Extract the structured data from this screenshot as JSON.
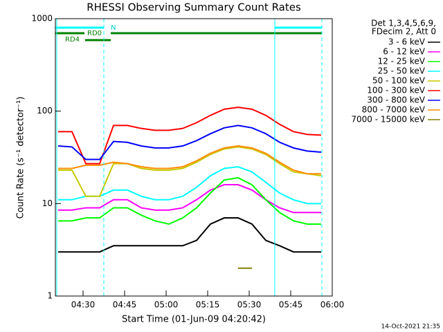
{
  "chart_data": {
    "type": "line",
    "title": "RHESSI Observing Summary Count Rates",
    "xlabel": "Start Time (01-Jun-09 04:20:42)",
    "ylabel": "Count Rate (s⁻¹ detector⁻¹)",
    "legend_header": [
      "Det 1,3,4,5,6,9,",
      "FDecim 2, Att 0"
    ],
    "timestamp": "14-Oct-2021 21:35",
    "annotations": [
      "N",
      "RD0",
      "RD4"
    ],
    "log_y": true,
    "xlim": [
      20,
      120
    ],
    "xticks": [
      {
        "value": 30,
        "label": "04:30"
      },
      {
        "value": 45,
        "label": "04:45"
      },
      {
        "value": 60,
        "label": "05:00"
      },
      {
        "value": 75,
        "label": "05:15"
      },
      {
        "value": 90,
        "label": "05:30"
      },
      {
        "value": 105,
        "label": "05:45"
      },
      {
        "value": 120,
        "label": "06:00"
      }
    ],
    "ylim": [
      1,
      1000
    ],
    "yticks": [
      1,
      10,
      100,
      1000
    ],
    "x": [
      21,
      26,
      31,
      36,
      41,
      46,
      51,
      56,
      61,
      66,
      71,
      76,
      81,
      86,
      91,
      96,
      101,
      106,
      111,
      116
    ],
    "series": [
      {
        "name": "3 - 6 keV",
        "color": "#000000",
        "values": [
          3,
          3,
          3,
          3,
          3.5,
          3.5,
          3.5,
          3.5,
          3.5,
          3.5,
          4,
          6,
          7,
          7,
          6,
          4,
          3.5,
          3,
          3,
          3
        ]
      },
      {
        "name": "6 - 12 keV",
        "color": "#ff00ff",
        "values": [
          8.5,
          8.5,
          9,
          9,
          11,
          11,
          9,
          8.5,
          8.5,
          9,
          11,
          14,
          16,
          16,
          14,
          11,
          9,
          8,
          8,
          8
        ]
      },
      {
        "name": "12 - 25 keV",
        "color": "#00ff00",
        "values": [
          6.5,
          6.5,
          7,
          7,
          9,
          9,
          7.5,
          6.5,
          6,
          7,
          9,
          13,
          18,
          19,
          16,
          11,
          8,
          6.5,
          6,
          6
        ]
      },
      {
        "name": "25 - 50 keV",
        "color": "#00ffff",
        "values": [
          11,
          11,
          12,
          12,
          14,
          14,
          12,
          11,
          11,
          12,
          15,
          20,
          24,
          25,
          22,
          17,
          13,
          11,
          10,
          10
        ]
      },
      {
        "name": "50 - 100 keV",
        "color": "#c8c800",
        "values": [
          23,
          23,
          12,
          12,
          27,
          27,
          24,
          23,
          23,
          24,
          28,
          34,
          39,
          41,
          39,
          34,
          27,
          22,
          21,
          20
        ]
      },
      {
        "name": "100 - 300 keV",
        "color": "#ff0000",
        "values": [
          60,
          60,
          27,
          27,
          70,
          70,
          65,
          62,
          62,
          65,
          75,
          90,
          105,
          110,
          105,
          90,
          72,
          60,
          56,
          55
        ]
      },
      {
        "name": "300 - 800 keV",
        "color": "#0000ff",
        "values": [
          42,
          41,
          30,
          30,
          47,
          46,
          42,
          40,
          40,
          42,
          48,
          57,
          66,
          70,
          66,
          57,
          46,
          40,
          37,
          36
        ]
      },
      {
        "name": "800 - 7000 keV",
        "color": "#ff8c00",
        "values": [
          24,
          24,
          26,
          26,
          28,
          27,
          25,
          24,
          24,
          25,
          29,
          35,
          40,
          42,
          40,
          35,
          28,
          23,
          21,
          21
        ]
      },
      {
        "name": "7000 - 15000 keV",
        "color": "#808000",
        "values": [
          null,
          null,
          null,
          null,
          null,
          null,
          null,
          null,
          null,
          null,
          null,
          null,
          null,
          2,
          2,
          null,
          null,
          null,
          null,
          null
        ]
      }
    ]
  }
}
